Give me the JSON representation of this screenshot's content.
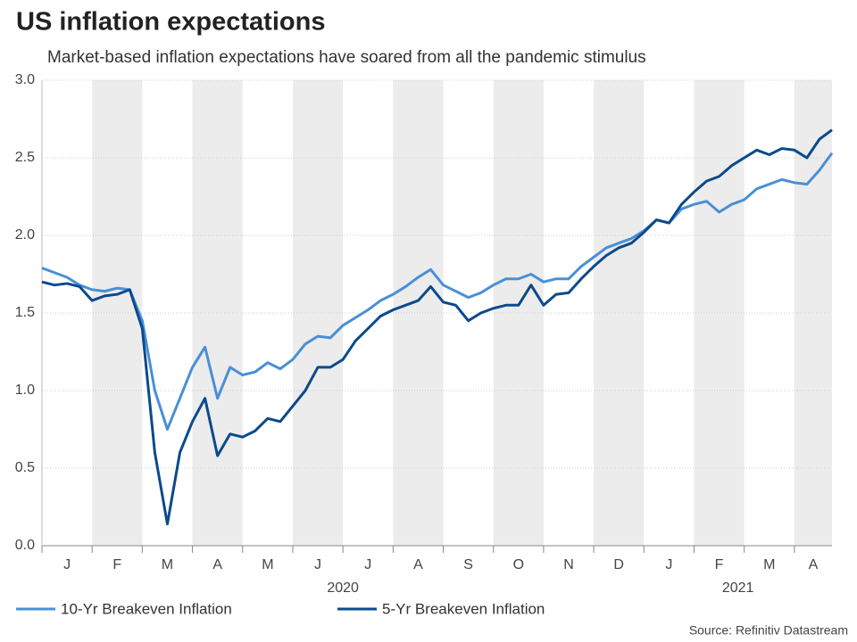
{
  "chart_data": {
    "type": "line",
    "title": "US inflation expectations",
    "subtitle": "Market-based inflation expectations have soared from all the pandemic stimulus",
    "source": "Source: Refinitiv Datastream",
    "categories": [
      "J",
      null,
      null,
      null,
      "F",
      null,
      null,
      null,
      "M",
      null,
      null,
      null,
      "A",
      null,
      null,
      null,
      "M",
      null,
      null,
      null,
      "J",
      null,
      null,
      null,
      "J",
      null,
      null,
      null,
      "A",
      null,
      null,
      null,
      "S",
      null,
      null,
      null,
      "O",
      null,
      null,
      null,
      "N",
      null,
      null,
      null,
      "D",
      null,
      null,
      null,
      "J",
      null,
      null,
      null,
      "F",
      null,
      null,
      null,
      "M",
      null,
      null,
      null,
      "A",
      null,
      null,
      null
    ],
    "x_group_labels": [
      "2020",
      "2021"
    ],
    "series": [
      {
        "name": "10-Yr Breakeven Inflation",
        "color": "#4a8fd6",
        "values": [
          1.79,
          1.76,
          1.73,
          1.68,
          1.65,
          1.64,
          1.66,
          1.65,
          1.45,
          1.0,
          0.75,
          0.95,
          1.15,
          1.28,
          0.95,
          1.15,
          1.1,
          1.12,
          1.18,
          1.14,
          1.2,
          1.3,
          1.35,
          1.34,
          1.42,
          1.47,
          1.52,
          1.58,
          1.62,
          1.67,
          1.73,
          1.78,
          1.68,
          1.64,
          1.6,
          1.63,
          1.68,
          1.72,
          1.72,
          1.75,
          1.7,
          1.72,
          1.72,
          1.8,
          1.86,
          1.92,
          1.95,
          1.98,
          2.03,
          2.1,
          2.08,
          2.17,
          2.2,
          2.22,
          2.15,
          2.2,
          2.23,
          2.3,
          2.33,
          2.36,
          2.34,
          2.33,
          2.42,
          2.53
        ]
      },
      {
        "name": "5-Yr Breakeven Inflation",
        "color": "#0b4a8b",
        "values": [
          1.7,
          1.68,
          1.69,
          1.67,
          1.58,
          1.61,
          1.62,
          1.65,
          1.4,
          0.6,
          0.14,
          0.6,
          0.8,
          0.95,
          0.58,
          0.72,
          0.7,
          0.74,
          0.82,
          0.8,
          0.9,
          1.0,
          1.15,
          1.15,
          1.2,
          1.32,
          1.4,
          1.48,
          1.52,
          1.55,
          1.58,
          1.67,
          1.57,
          1.55,
          1.45,
          1.5,
          1.53,
          1.55,
          1.55,
          1.68,
          1.55,
          1.62,
          1.63,
          1.72,
          1.8,
          1.87,
          1.92,
          1.95,
          2.02,
          2.1,
          2.08,
          2.2,
          2.28,
          2.35,
          2.38,
          2.45,
          2.5,
          2.55,
          2.52,
          2.56,
          2.55,
          2.5,
          2.62,
          2.68
        ]
      }
    ],
    "ylim": [
      0,
      3
    ],
    "yticks": [
      {
        "value": 0,
        "label": "0.0"
      },
      0.5,
      {
        "value": 1,
        "label": "1.0"
      },
      1.5,
      {
        "value": 2,
        "label": "2.0"
      },
      2.5,
      {
        "value": 3,
        "label": "3.0"
      }
    ],
    "grid": true,
    "shade_alternate_months": true,
    "legend": "bottom"
  }
}
